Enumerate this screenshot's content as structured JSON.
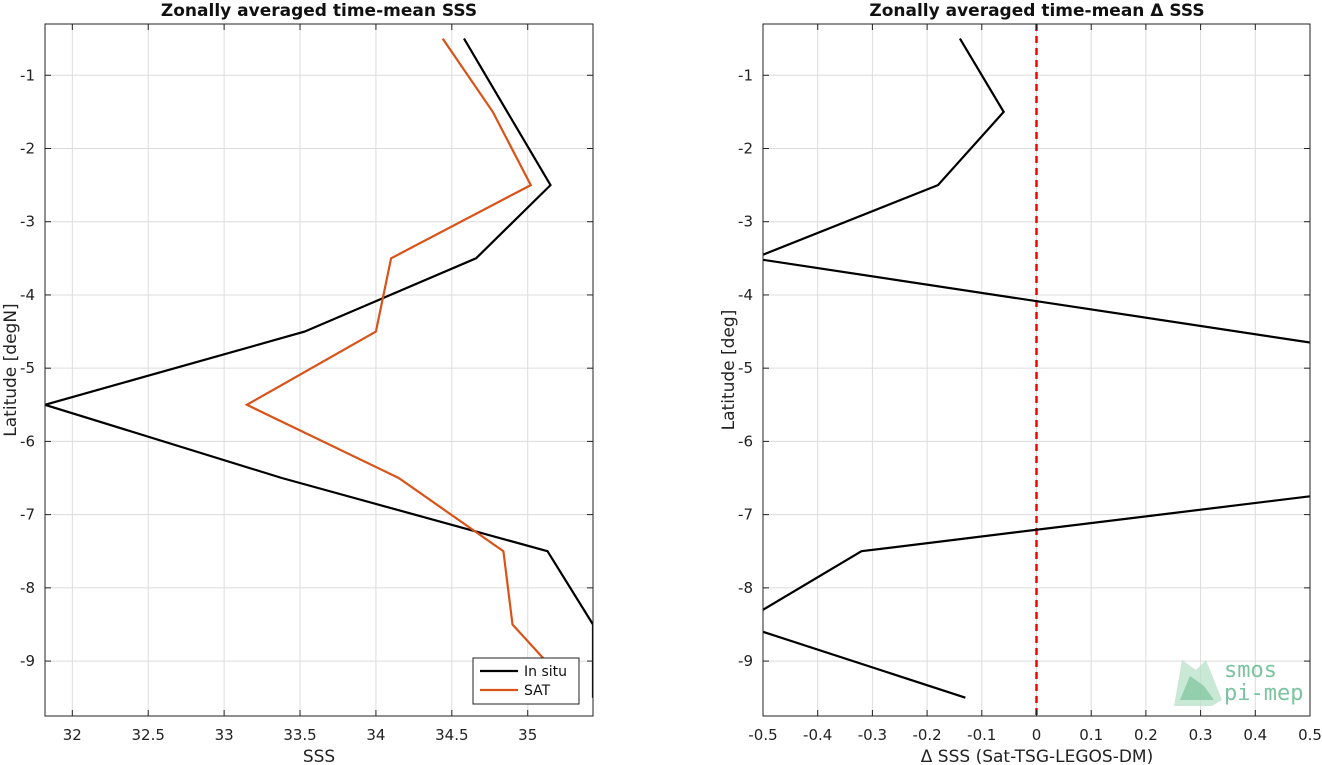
{
  "chart_data": [
    {
      "type": "line",
      "title": "Zonally averaged time-mean SSS",
      "xlabel": "SSS",
      "ylabel": "Latitude [degN]",
      "xlim": [
        31.82,
        35.43
      ],
      "ylim": [
        -9.75,
        -0.3
      ],
      "xticks": [
        32,
        32.5,
        33,
        33.5,
        34,
        34.5,
        35
      ],
      "xtick_labels": [
        "32",
        "32.5",
        "33",
        "33.5",
        "34",
        "34.5",
        "35"
      ],
      "yticks": [
        -1,
        -2,
        -3,
        -4,
        -5,
        -6,
        -7,
        -8,
        -9
      ],
      "ytick_labels": [
        "-1",
        "-2",
        "-3",
        "-4",
        "-5",
        "-6",
        "-7",
        "-8",
        "-9"
      ],
      "grid": true,
      "legend_position": "bottom-right",
      "series": [
        {
          "name": "In situ",
          "color": "#000000",
          "x": [
            34.58,
            35.15,
            34.66,
            33.53,
            31.82,
            33.38,
            35.13,
            35.43,
            35.43
          ],
          "y": [
            -0.5,
            -2.5,
            -3.5,
            -4.5,
            -5.5,
            -6.5,
            -7.5,
            -8.5,
            -9.5
          ]
        },
        {
          "name": "SAT",
          "color": "#d95319",
          "x": [
            34.44,
            34.77,
            35.02,
            34.1,
            34.0,
            33.15,
            34.15,
            34.84,
            34.9,
            35.12
          ],
          "y": [
            -0.5,
            -1.5,
            -2.5,
            -3.5,
            -4.5,
            -5.5,
            -6.5,
            -7.5,
            -8.5,
            -9.0
          ]
        }
      ]
    },
    {
      "type": "line",
      "title": "Zonally averaged time-mean Δ SSS",
      "xlabel": "Δ SSS (Sat-TSG-LEGOS-DM)",
      "ylabel": "Latitude [deg]",
      "xlim": [
        -0.5,
        0.5
      ],
      "ylim": [
        -9.75,
        -0.3
      ],
      "xticks": [
        -0.5,
        -0.4,
        -0.3,
        -0.2,
        -0.1,
        0,
        0.1,
        0.2,
        0.3,
        0.4,
        0.5
      ],
      "xtick_labels": [
        "-0.5",
        "-0.4",
        "-0.3",
        "-0.2",
        "-0.1",
        "0",
        "0.1",
        "0.2",
        "0.3",
        "0.4",
        "0.5"
      ],
      "yticks": [
        -1,
        -2,
        -3,
        -4,
        -5,
        -6,
        -7,
        -8,
        -9
      ],
      "ytick_labels": [
        "-1",
        "-2",
        "-3",
        "-4",
        "-5",
        "-6",
        "-7",
        "-8",
        "-9"
      ],
      "grid": true,
      "zero_line": {
        "x": 0,
        "color": "#ff0000",
        "style": "dashed"
      },
      "series": [
        {
          "color": "#000000",
          "x": [
            -0.14,
            -0.06,
            -0.18,
            -0.5
          ],
          "y": [
            -0.5,
            -1.5,
            -2.5,
            -3.45
          ]
        },
        {
          "color": "#000000",
          "x": [
            -0.5,
            0.5
          ],
          "y": [
            -3.52,
            -4.65
          ]
        },
        {
          "color": "#000000",
          "x": [
            0.5,
            -0.32,
            -0.5
          ],
          "y": [
            -6.75,
            -7.5,
            -8.3
          ]
        },
        {
          "color": "#000000",
          "x": [
            -0.5,
            -0.13
          ],
          "y": [
            -8.6,
            -9.5
          ]
        }
      ]
    }
  ],
  "logo": {
    "line1": "smos",
    "line2": "pi-mep"
  }
}
